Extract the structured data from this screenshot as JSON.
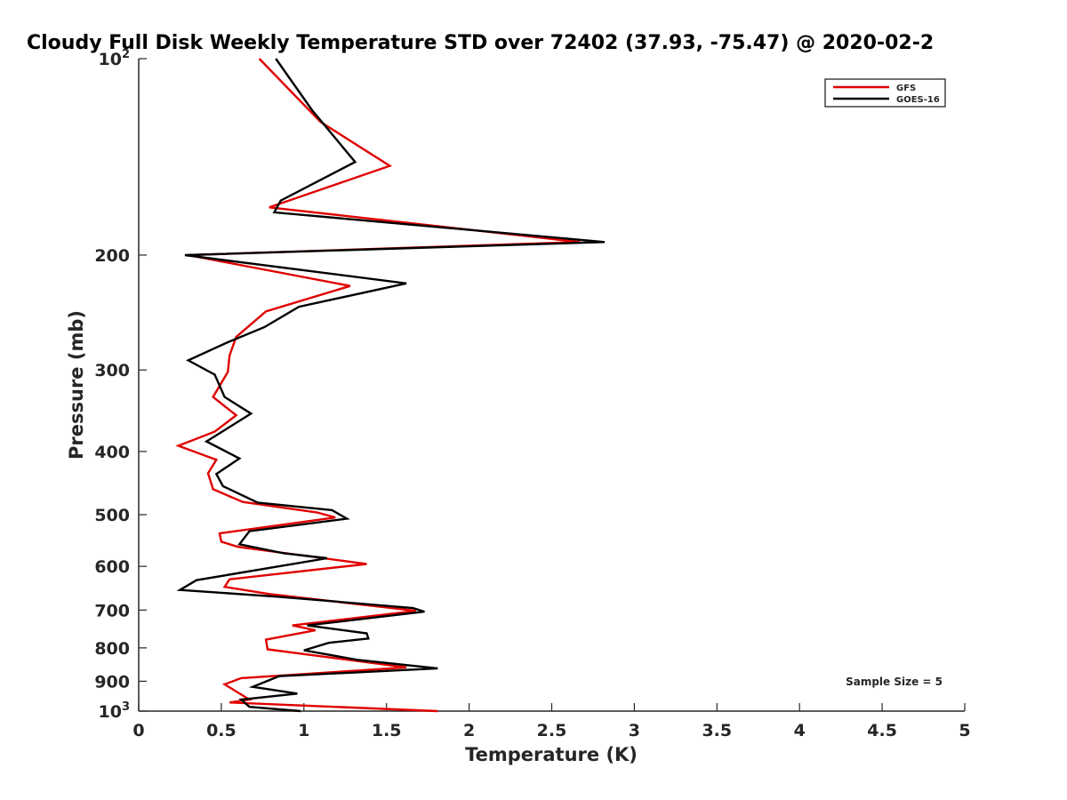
{
  "chart_data": {
    "type": "line",
    "title": "Cloudy Full Disk Weekly Temperature STD over 72402 (37.93, -75.47) @ 2020-02-2",
    "xlabel": "Temperature (K)",
    "ylabel": "Pressure (mb)",
    "xlim": [
      0,
      5
    ],
    "ylim": [
      100,
      1000
    ],
    "yscale": "log",
    "y_reversed": true,
    "x_ticks": [
      "0",
      "0.5",
      "1",
      "1.5",
      "2",
      "2.5",
      "3",
      "3.5",
      "4",
      "4.5",
      "5"
    ],
    "y_ticks": [
      {
        "value": 100,
        "base": "10",
        "exp": "2"
      },
      {
        "value": 200,
        "label": "200"
      },
      {
        "value": 300,
        "label": "300"
      },
      {
        "value": 400,
        "label": "400"
      },
      {
        "value": 500,
        "label": "500"
      },
      {
        "value": 600,
        "label": "600"
      },
      {
        "value": 700,
        "label": "700"
      },
      {
        "value": 800,
        "label": "800"
      },
      {
        "value": 900,
        "label": "900"
      },
      {
        "value": 1000,
        "base": "10",
        "exp": "3"
      }
    ],
    "grid": false,
    "legend_position": "top-right",
    "annotation": "Sample Size = 5",
    "series": [
      {
        "name": "GFS",
        "color": "#e00000",
        "points": [
          [
            0.73,
            100
          ],
          [
            1.1,
            125
          ],
          [
            1.52,
            146
          ],
          [
            0.79,
            169
          ],
          [
            2.67,
            191
          ],
          [
            0.3,
            200
          ],
          [
            1.28,
            223
          ],
          [
            0.77,
            244
          ],
          [
            0.59,
            267
          ],
          [
            0.55,
            285
          ],
          [
            0.54,
            302
          ],
          [
            0.45,
            330
          ],
          [
            0.59,
            352
          ],
          [
            0.46,
            373
          ],
          [
            0.24,
            392
          ],
          [
            0.47,
            412
          ],
          [
            0.42,
            432
          ],
          [
            0.45,
            457
          ],
          [
            0.63,
            478
          ],
          [
            1.08,
            496
          ],
          [
            1.19,
            505
          ],
          [
            0.49,
            534
          ],
          [
            0.5,
            550
          ],
          [
            0.6,
            560
          ],
          [
            1.38,
            595
          ],
          [
            0.55,
            628
          ],
          [
            0.52,
            645
          ],
          [
            0.8,
            662
          ],
          [
            1.68,
            702
          ],
          [
            0.93,
            739
          ],
          [
            1.07,
            752
          ],
          [
            0.77,
            777
          ],
          [
            0.78,
            804
          ],
          [
            1.62,
            857
          ],
          [
            0.62,
            890
          ],
          [
            0.52,
            910
          ],
          [
            0.67,
            960
          ],
          [
            0.55,
            970
          ],
          [
            1.81,
            1000
          ]
        ]
      },
      {
        "name": "GOES-16",
        "color": "#000000",
        "points": [
          [
            0.83,
            100
          ],
          [
            1.05,
            120
          ],
          [
            1.31,
            144
          ],
          [
            0.86,
            165
          ],
          [
            0.82,
            172
          ],
          [
            2.82,
            191
          ],
          [
            0.28,
            200
          ],
          [
            1.62,
            221
          ],
          [
            0.97,
            240
          ],
          [
            0.76,
            258
          ],
          [
            0.54,
            272
          ],
          [
            0.3,
            290
          ],
          [
            0.46,
            305
          ],
          [
            0.52,
            330
          ],
          [
            0.68,
            350
          ],
          [
            0.41,
            386
          ],
          [
            0.61,
            410
          ],
          [
            0.47,
            433
          ],
          [
            0.51,
            452
          ],
          [
            0.72,
            479
          ],
          [
            1.17,
            492
          ],
          [
            1.26,
            507
          ],
          [
            0.67,
            530
          ],
          [
            0.61,
            555
          ],
          [
            0.88,
            573
          ],
          [
            1.14,
            583
          ],
          [
            0.35,
            630
          ],
          [
            0.25,
            652
          ],
          [
            0.85,
            668
          ],
          [
            1.66,
            695
          ],
          [
            1.73,
            704
          ],
          [
            1.02,
            739
          ],
          [
            1.38,
            760
          ],
          [
            1.39,
            774
          ],
          [
            1.15,
            786
          ],
          [
            1.0,
            807
          ],
          [
            1.33,
            835
          ],
          [
            1.81,
            860
          ],
          [
            0.85,
            884
          ],
          [
            0.69,
            918
          ],
          [
            0.96,
            940
          ],
          [
            0.62,
            960
          ],
          [
            0.67,
            985
          ],
          [
            0.98,
            1000
          ]
        ]
      }
    ]
  }
}
